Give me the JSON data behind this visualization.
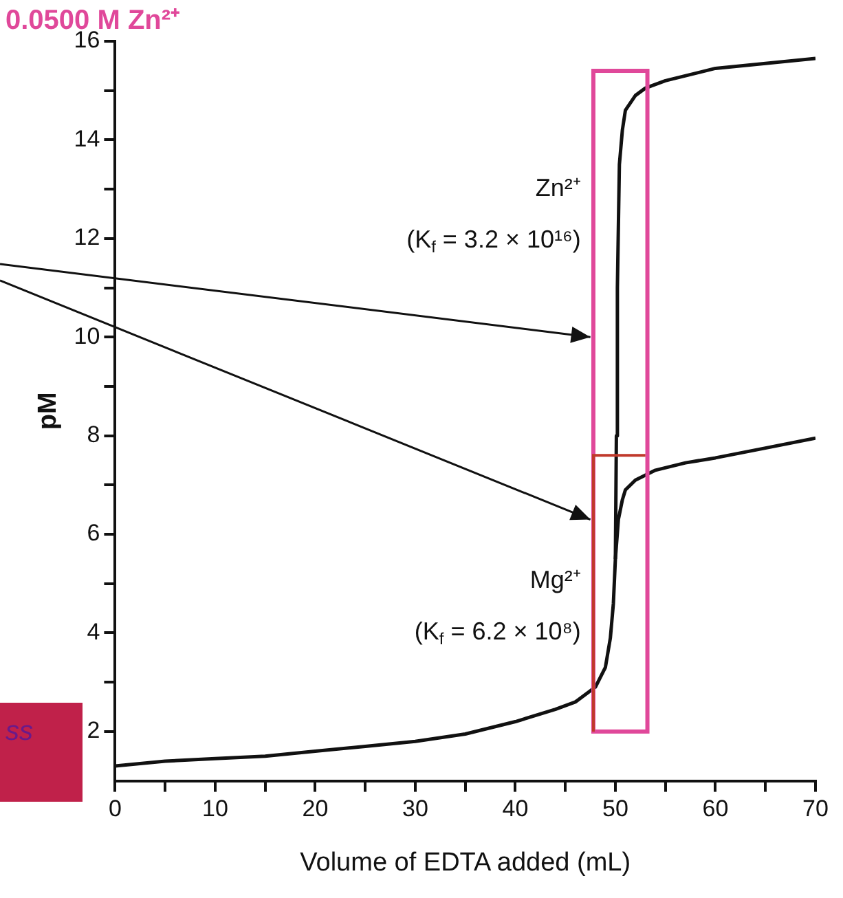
{
  "chart_data": {
    "type": "line",
    "title": "0.0500 M Zn²⁺",
    "xlabel": "Volume of EDTA added (mL)",
    "ylabel": "pM",
    "series": [
      {
        "color": "#111111",
        "x": [
          0,
          5,
          10,
          15,
          20,
          25,
          30,
          35,
          40,
          44,
          46,
          48,
          49,
          49.5,
          49.8,
          50,
          50.3,
          50.7,
          51,
          52,
          54,
          57,
          60,
          65,
          70
        ],
        "values": [
          1.3,
          1.4,
          1.45,
          1.5,
          1.6,
          1.7,
          1.8,
          1.95,
          2.2,
          2.45,
          2.6,
          2.9,
          3.3,
          3.9,
          4.6,
          5.5,
          6.3,
          6.7,
          6.9,
          7.1,
          7.3,
          7.45,
          7.55,
          7.75,
          7.95
        ]
      },
      {
        "color": "#111111",
        "x": [
          50,
          50.1,
          50.2,
          50.4,
          50.7,
          51,
          52,
          53,
          55,
          60,
          65,
          70
        ],
        "values": [
          5.5,
          8,
          11,
          13.5,
          14.2,
          14.6,
          14.9,
          15.05,
          15.2,
          15.45,
          15.55,
          15.65
        ]
      }
    ],
    "xlim": [
      0,
      70
    ],
    "ylim": [
      1,
      16
    ],
    "xticks": [
      0,
      {
        "value": 5,
        "label": null
      },
      10,
      {
        "value": 15,
        "label": null
      },
      20,
      {
        "value": 25,
        "label": null
      },
      30,
      {
        "value": 35,
        "label": null
      },
      40,
      {
        "value": 45,
        "label": null
      },
      50,
      {
        "value": 55,
        "label": null
      },
      60,
      {
        "value": 65,
        "label": null
      },
      70
    ],
    "yticks": [
      2,
      {
        "value": 3,
        "label": null
      },
      4,
      {
        "value": 5,
        "label": null
      },
      6,
      {
        "value": 7,
        "label": null
      },
      8,
      {
        "value": 9,
        "label": null
      },
      10,
      {
        "value": 11,
        "label": null
      },
      12,
      {
        "value": 13,
        "label": null
      },
      14,
      {
        "value": 15,
        "label": null
      },
      16
    ],
    "annotations": [
      "Zn²⁺",
      "(K$_{f}$ = 3.2 × 10¹⁶)",
      "Mg²⁺",
      "(K$_{f}$ = 6.2 × 10⁸)",
      "ss"
    ],
    "grid": false,
    "legend": false,
    "marker": "none",
    "line_style": "solid"
  }
}
